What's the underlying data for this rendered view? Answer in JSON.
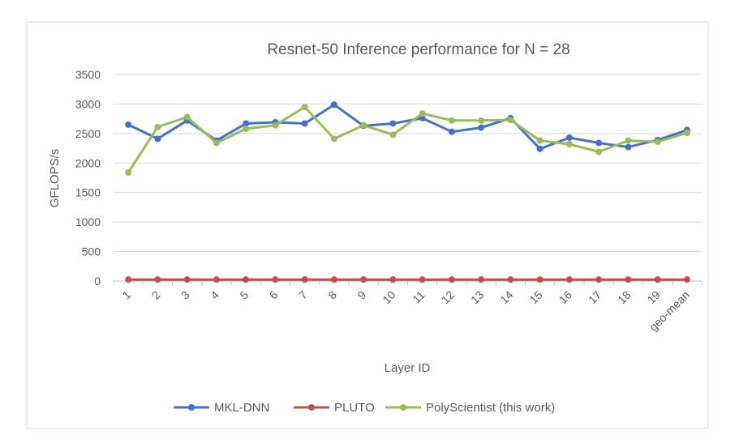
{
  "chart_data": {
    "type": "line",
    "title": "Resnet-50 Inference performance for N = 28",
    "xlabel": "Layer ID",
    "ylabel": "GFLOPS/s",
    "ylim": [
      0,
      3500
    ],
    "yticks": [
      0,
      500,
      1000,
      1500,
      2000,
      2500,
      3000,
      3500
    ],
    "grid": true,
    "legend_position": "bottom",
    "categories": [
      "1",
      "2",
      "3",
      "4",
      "5",
      "6",
      "7",
      "8",
      "9",
      "10",
      "11",
      "12",
      "13",
      "14",
      "15",
      "16",
      "17",
      "18",
      "19",
      "geo-mean"
    ],
    "series": [
      {
        "name": "MKL-DNN",
        "color": "#4472c4",
        "values": [
          2650,
          2410,
          2720,
          2380,
          2670,
          2690,
          2670,
          2990,
          2630,
          2670,
          2760,
          2530,
          2600,
          2760,
          2240,
          2430,
          2340,
          2270,
          2390,
          2560
        ]
      },
      {
        "name": "PLUTO",
        "color": "#c0504d",
        "values": [
          25,
          25,
          25,
          25,
          25,
          25,
          25,
          25,
          25,
          25,
          25,
          25,
          25,
          25,
          25,
          25,
          25,
          25,
          25,
          25
        ]
      },
      {
        "name": "PolyScientist (this work)",
        "color": "#9bbb59",
        "values": [
          1840,
          2610,
          2780,
          2340,
          2580,
          2640,
          2950,
          2410,
          2640,
          2480,
          2840,
          2720,
          2720,
          2730,
          2380,
          2320,
          2190,
          2380,
          2360,
          2510
        ]
      }
    ]
  }
}
